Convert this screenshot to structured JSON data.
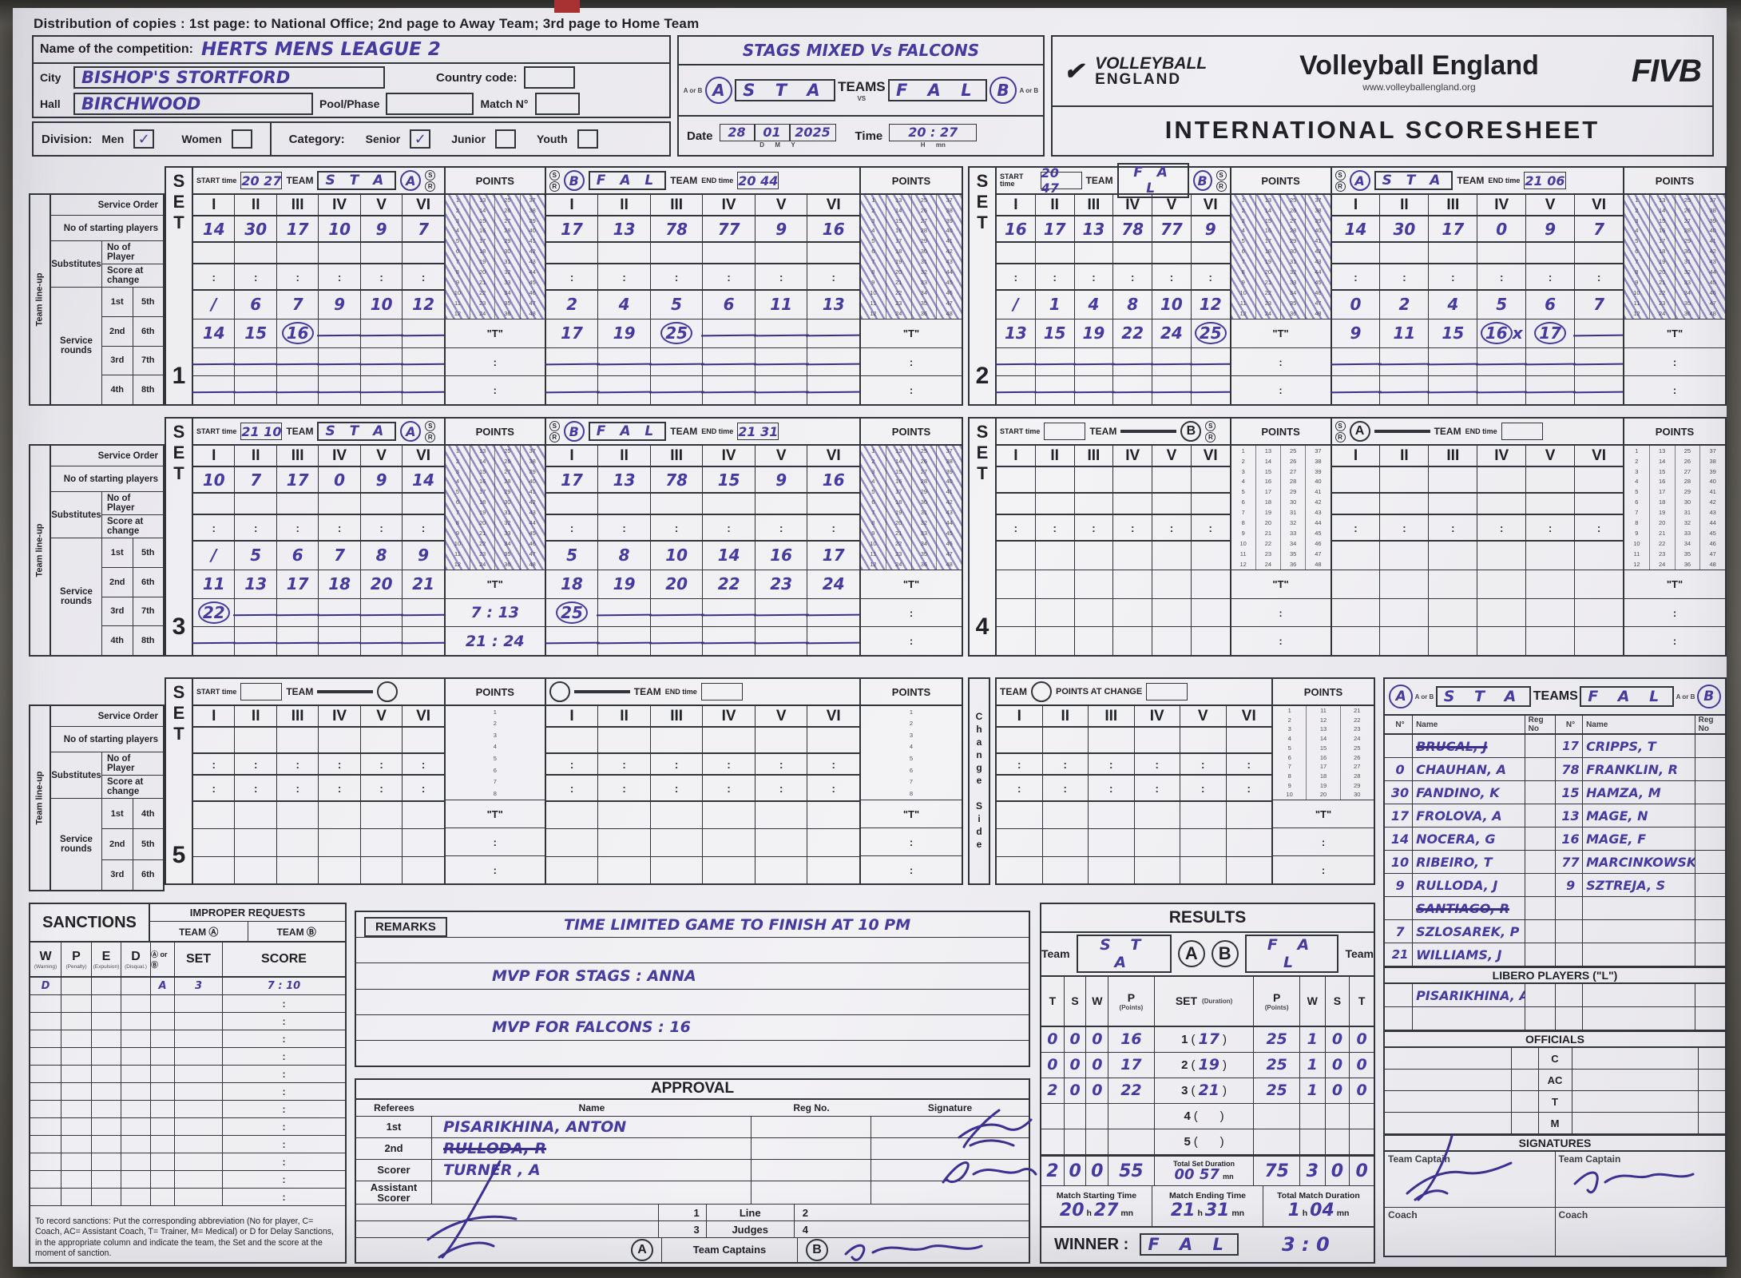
{
  "distribution": {
    "text": "Distribution of copies : 1st page: to National Office;  2nd page to Away Team; 3rd page  to Home Team"
  },
  "header": {
    "competition_label": "Name of the competition:",
    "competition": "HERTS MENS LEAGUE 2",
    "city_label": "City",
    "city": "BISHOP'S STORTFORD",
    "hall_label": "Hall",
    "hall": "BIRCHWOOD",
    "pool_label": "Pool/Phase",
    "country_label": "Country code:",
    "match_label": "Match N°",
    "division_label": "Division:",
    "men": "Men",
    "women": "Women",
    "men_check": "✓",
    "category_label": "Category:",
    "senior": "Senior",
    "junior": "Junior",
    "youth": "Youth",
    "senior_check": "✓",
    "title_line": "STAGS MIXED      Vs      FALCONS",
    "a_or_b": "A or B",
    "team_a_letter": "A",
    "team_a_code": "S T A",
    "teams_label": "TEAMS",
    "vs_small": "VS",
    "team_b_code": "F A L",
    "team_b_letter": "B",
    "date_label": "Date",
    "date_d": "28",
    "date_m": "01",
    "date_y": "2025",
    "d": "D",
    "m": "M",
    "y": "Y",
    "time_label": "Time",
    "time": "20 : 27",
    "h": "H",
    "mn": "mn"
  },
  "brand": {
    "logo_top": "VOLLEYBALL",
    "logo_bottom": "ENGLAND",
    "name": "Volleyball England",
    "url": "www.volleyballengland.org",
    "fivb": "FIVB",
    "sheet_title": "INTERNATIONAL SCORESHEET"
  },
  "sidebar": {
    "team_lineup": "Team line-up",
    "service_order": "Service Order",
    "starting_players": "No of starting players",
    "no_of_player": "No of Player",
    "substitutes": "Substitutes",
    "score_at_change": "Score at change",
    "service_rounds": "Service rounds",
    "rounds_a": [
      "1st",
      "2nd",
      "3rd",
      "4th"
    ],
    "rounds_b": [
      "5th",
      "6th",
      "7th",
      "8th"
    ],
    "rounds5_a": [
      "1st",
      "2nd",
      "3rd"
    ],
    "rounds5_b": [
      "4th",
      "5th",
      "6th"
    ]
  },
  "labels": {
    "start_time": "START time",
    "end_time": "END time",
    "team": "TEAM",
    "points": "POINTS",
    "points_at_change": "POINTS AT CHANGE",
    "change_side": "Change Side",
    "t": "\"T\"",
    "s": "S",
    "r": "R",
    "romans": [
      "I",
      "II",
      "III",
      "IV",
      "V",
      "VI"
    ],
    "colons6": [
      ":",
      ":",
      ":",
      ":",
      ":",
      ":"
    ],
    "blank6": [
      "",
      "",
      "",
      "",
      "",
      ""
    ],
    "set_letters": [
      "S",
      "E",
      "T"
    ]
  },
  "sets": [
    {
      "number": "1",
      "start": "20 27",
      "end": "20 44",
      "left": {
        "letter": "A",
        "code": "S T A",
        "starting": [
          "14",
          "30",
          "17",
          "10",
          "9",
          "7"
        ],
        "rounds": [
          [
            "/",
            "6",
            "7",
            "9",
            "10",
            "12"
          ],
          [
            "14",
            "15",
            "(16)",
            "~",
            "~",
            "~"
          ],
          [
            "~",
            "~",
            "~",
            "~",
            "~",
            "~"
          ],
          [
            "~",
            "~",
            "~",
            "~",
            "~",
            "~"
          ]
        ],
        "t_rows": [
          "\"T\"",
          ":",
          ":"
        ]
      },
      "right": {
        "letter": "B",
        "code": "F A L",
        "starting": [
          "17",
          "13",
          "78",
          "77",
          "9",
          "16"
        ],
        "rounds": [
          [
            "2",
            "4",
            "5",
            "6",
            "11",
            "13"
          ],
          [
            "17",
            "19",
            "(25)",
            "~",
            "~",
            "~"
          ],
          [
            "~",
            "~",
            "~",
            "~",
            "~",
            "~"
          ],
          [
            "~",
            "~",
            "~",
            "~",
            "~",
            "~"
          ]
        ],
        "t_rows": [
          "\"T\"",
          ":",
          ":"
        ]
      }
    },
    {
      "number": "2",
      "start": "20 47",
      "end": "21 06",
      "left": {
        "letter": "B",
        "code": "F A L",
        "starting": [
          "16",
          "17",
          "13",
          "78",
          "77",
          "9"
        ],
        "rounds": [
          [
            "/",
            "1",
            "4",
            "8",
            "10",
            "12"
          ],
          [
            "13",
            "15",
            "19",
            "22",
            "24",
            "(25)"
          ],
          [
            "~",
            "~",
            "~",
            "~",
            "~",
            "~"
          ],
          [
            "~",
            "~",
            "~",
            "~",
            "~",
            "~"
          ]
        ],
        "t_rows": [
          "\"T\"",
          ":",
          ":"
        ]
      },
      "right": {
        "letter": "A",
        "code": "S T A",
        "starting": [
          "14",
          "30",
          "17",
          "0",
          "9",
          "7"
        ],
        "rounds": [
          [
            "0",
            "2",
            "4",
            "5",
            "6",
            "7"
          ],
          [
            "9",
            "11",
            "15",
            "(16)x",
            "(17)",
            "~"
          ],
          [
            "~",
            "~",
            "~",
            "~",
            "~",
            "~"
          ],
          [
            "~",
            "~",
            "~",
            "~",
            "~",
            "~"
          ]
        ],
        "t_rows": [
          "\"T\"",
          ":",
          ":"
        ]
      }
    },
    {
      "number": "3",
      "start": "21 10",
      "end": "21 31",
      "left": {
        "letter": "A",
        "code": "S T A",
        "starting": [
          "10",
          "7",
          "17",
          "0",
          "9",
          "14"
        ],
        "rounds": [
          [
            "/",
            "5",
            "6",
            "7",
            "8",
            "9"
          ],
          [
            "11",
            "13",
            "17",
            "18",
            "20",
            "21"
          ],
          [
            "(22)",
            "~",
            "~",
            "~",
            "~",
            "~"
          ],
          [
            "~",
            "~",
            "~",
            "~",
            "~",
            "~"
          ]
        ],
        "t_rows": [
          "\"T\"",
          "7 : 13",
          "21 : 24"
        ]
      },
      "right": {
        "letter": "B",
        "code": "F A L",
        "starting": [
          "17",
          "13",
          "78",
          "15",
          "9",
          "16"
        ],
        "rounds": [
          [
            "5",
            "8",
            "10",
            "14",
            "16",
            "17"
          ],
          [
            "18",
            "19",
            "20",
            "22",
            "23",
            "24"
          ],
          [
            "(25)",
            "~",
            "~",
            "~",
            "~",
            "~"
          ],
          [
            "~",
            "~",
            "~",
            "~",
            "~",
            "~"
          ]
        ],
        "t_rows": [
          "\"T\"",
          ":",
          ":"
        ]
      }
    },
    {
      "number": "4",
      "start": "",
      "end": "",
      "left": {
        "letter": "B",
        "code": "",
        "starting": [
          "",
          "",
          "",
          "",
          "",
          ""
        ],
        "rounds": [
          [
            "",
            "",
            "",
            "",
            "",
            ""
          ],
          [
            "",
            "",
            "",
            "",
            "",
            ""
          ],
          [
            "",
            "",
            "",
            "",
            "",
            ""
          ],
          [
            "",
            "",
            "",
            "",
            "",
            ""
          ]
        ],
        "t_rows": [
          "\"T\"",
          ":",
          ":"
        ]
      },
      "right": {
        "letter": "A",
        "code": "",
        "starting": [
          "",
          "",
          "",
          "",
          "",
          ""
        ],
        "rounds": [
          [
            "",
            "",
            "",
            "",
            "",
            ""
          ],
          [
            "",
            "",
            "",
            "",
            "",
            ""
          ],
          [
            "",
            "",
            "",
            "",
            "",
            ""
          ],
          [
            "",
            "",
            "",
            "",
            "",
            ""
          ]
        ],
        "t_rows": [
          "\"T\"",
          ":",
          ":"
        ]
      }
    }
  ],
  "set5": {
    "number": "5",
    "t_rows": [
      "\"T\"",
      ":",
      ":"
    ]
  },
  "rosters": {
    "a_letter": "A",
    "a_code": "S T A",
    "teams_label": "TEAMS",
    "b_code": "F A L",
    "b_letter": "B",
    "a_or_b": "A or B",
    "no_col": "N°",
    "name_col": "Name",
    "reg_col": "Reg No",
    "a": [
      {
        "no": "",
        "name": "BRUCAL, J",
        "struck": true
      },
      {
        "no": "0",
        "name": "CHAUHAN, A"
      },
      {
        "no": "30",
        "name": "FANDINO, K"
      },
      {
        "no": "17",
        "name": "FROLOVA, A"
      },
      {
        "no": "14",
        "name": "NOCERA, G"
      },
      {
        "no": "10",
        "name": "RIBEIRO, T"
      },
      {
        "no": "9",
        "name": "RULLODA, J"
      },
      {
        "no": "",
        "name": "SANTIAGO, R",
        "struck": true
      },
      {
        "no": "7",
        "name": "SZLOSAREK, P"
      },
      {
        "no": "(21)",
        "name": "WILLIAMS, J"
      }
    ],
    "b": [
      {
        "no": "(17)",
        "name": "CRIPPS, T"
      },
      {
        "no": "78",
        "name": "FRANKLIN, R"
      },
      {
        "no": "15",
        "name": "HAMZA, M"
      },
      {
        "no": "13",
        "name": "MAGE, N"
      },
      {
        "no": "16",
        "name": "MAGE, F"
      },
      {
        "no": "77",
        "name": "MARCINKOWSKI, J"
      },
      {
        "no": "9",
        "name": "SZTREJA, S"
      },
      {
        "no": "",
        "name": ""
      },
      {
        "no": "",
        "name": ""
      },
      {
        "no": "",
        "name": ""
      }
    ],
    "libero_title": "LIBERO PLAYERS (\"L\")",
    "lib_a": [
      {
        "no": "",
        "name": "PISARIKHINA, A"
      },
      {
        "no": "",
        "name": ""
      }
    ],
    "lib_b": [
      {
        "no": "",
        "name": ""
      },
      {
        "no": "",
        "name": ""
      }
    ],
    "officials_title": "OFFICIALS",
    "officials": [
      "C",
      "AC",
      "T",
      "M"
    ],
    "signatures_title": "SIGNATURES",
    "captain_label": "Team Captain",
    "coach_label": "Coach"
  },
  "sanctions": {
    "title": "SANCTIONS",
    "improper": "IMPROPER REQUESTS",
    "team_a": "TEAM Ⓐ",
    "team_b": "TEAM Ⓑ",
    "cols": [
      "W",
      "P",
      "E",
      "D"
    ],
    "col_subs": [
      "(Warning)",
      "(Penalty)",
      "(Expulsion)",
      "(Disqual.)"
    ],
    "ab_col": "Ⓐ or Ⓑ",
    "set_col": "SET",
    "score_col": "SCORE",
    "row": {
      "w": "D",
      "ab": "A",
      "set": "3",
      "score": "7 : 10"
    },
    "note": "To record sanctions:  Put the corresponding abbreviation (No for player, C= Coach, AC= Assistant Coach, T= Trainer, M= Medical) or D for Delay Sanctions, in the appropriate column and indicate the team, the Set and the score at the moment of sanction."
  },
  "remarks": {
    "title": "REMARKS",
    "lines": [
      "TIME LIMITED GAME TO FINISH AT 10 PM",
      "MVP FOR STAGS :    ANNA",
      "MVP FOR FALCONS :    16"
    ]
  },
  "approval": {
    "title": "APPROVAL",
    "referees_label": "Referees",
    "name_col": "Name",
    "reg_col": "Reg No.",
    "sig_col": "Signature",
    "rows": [
      {
        "role": "1st",
        "name": "PISARIKHINA, ANTON",
        "struck": false
      },
      {
        "role": "2nd",
        "name": "RULLODA, R",
        "struck": true
      },
      {
        "role": "Scorer",
        "name": "TURNER , A",
        "struck": false
      },
      {
        "role": "Assistant Scorer",
        "name": "",
        "struck": false
      }
    ],
    "lj": {
      "n1": "1",
      "w1": "Line",
      "n2": "2",
      "n3": "3",
      "w2": "Judges",
      "n4": "4"
    },
    "capt": {
      "a": "A",
      "label": "Team Captains",
      "b": "B"
    }
  },
  "results": {
    "title": "RESULTS",
    "team_label": "Team",
    "a_code": "S T A",
    "a_letter": "A",
    "b_letter": "B",
    "b_code": "F A L",
    "lcols": [
      "T",
      "S",
      "W",
      "P"
    ],
    "points_sub": "(Points)",
    "set_col": "SET",
    "dur_sub": "(Duration)",
    "rcols": [
      "P",
      "W",
      "S",
      "T"
    ],
    "rows": [
      {
        "l": [
          "0",
          "0",
          "0",
          "16"
        ],
        "set": "1",
        "dur": "17",
        "r": [
          "25",
          "1",
          "0",
          "0"
        ]
      },
      {
        "l": [
          "0",
          "0",
          "0",
          "17"
        ],
        "set": "2",
        "dur": "19",
        "r": [
          "25",
          "1",
          "0",
          "0"
        ]
      },
      {
        "l": [
          "2",
          "0",
          "0",
          "22"
        ],
        "set": "3",
        "dur": "21",
        "r": [
          "25",
          "1",
          "0",
          "0"
        ]
      },
      {
        "l": [
          "",
          "",
          "",
          ""
        ],
        "set": "4",
        "dur": "",
        "r": [
          "",
          "",
          "",
          ""
        ]
      },
      {
        "l": [
          "",
          "",
          "",
          ""
        ],
        "set": "5",
        "dur": "",
        "r": [
          "",
          "",
          "",
          ""
        ]
      }
    ],
    "totals": {
      "l": [
        "2",
        "0",
        "0",
        "55"
      ],
      "label": "Total Set Duration",
      "value": "00 57",
      "unit": "mn",
      "r": [
        "75",
        "3",
        "0",
        "0"
      ]
    },
    "mst_label": "Match Starting Time",
    "mst_h": "20",
    "mst_mn": "27",
    "met_label": "Match Ending Time",
    "met_h": "21",
    "met_mn": "31",
    "tmd_label": "Total Match Duration",
    "tmd_h": "1",
    "tmd_mn": "04",
    "h_unit": "h",
    "mn_unit": "mn",
    "winner_label": "WINNER :",
    "winner": "F A L",
    "score": "3 : 0"
  }
}
